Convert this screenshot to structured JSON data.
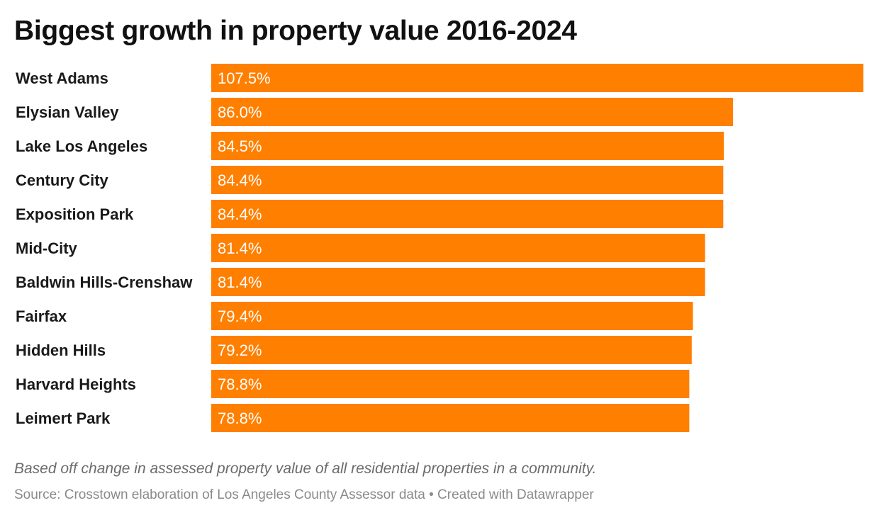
{
  "title": "Biggest growth in property value 2016-2024",
  "notes": "Based off change in assessed property value of all residential properties in a community.",
  "source": "Source: Crosstown elaboration of Los Angeles County Assessor data • Created with Datawrapper",
  "chart_data": {
    "type": "bar",
    "orientation": "horizontal",
    "title": "Biggest growth in property value 2016-2024",
    "categories": [
      "West Adams",
      "Elysian Valley",
      "Lake Los Angeles",
      "Century City",
      "Exposition Park",
      "Mid-City",
      "Baldwin Hills-Crenshaw",
      "Fairfax",
      "Hidden Hills",
      "Harvard Heights",
      "Leimert Park"
    ],
    "values": [
      107.5,
      86.0,
      84.5,
      84.4,
      84.4,
      81.4,
      81.4,
      79.4,
      79.2,
      78.8,
      78.8
    ],
    "value_labels": [
      "107.5%",
      "86.0%",
      "84.5%",
      "84.4%",
      "84.4%",
      "81.4%",
      "81.4%",
      "79.4%",
      "79.2%",
      "78.8%",
      "78.8%"
    ],
    "unit": "%",
    "xlim": [
      0,
      107.5
    ],
    "bar_color": "#ff7f00",
    "grid": false,
    "legend": "none"
  }
}
